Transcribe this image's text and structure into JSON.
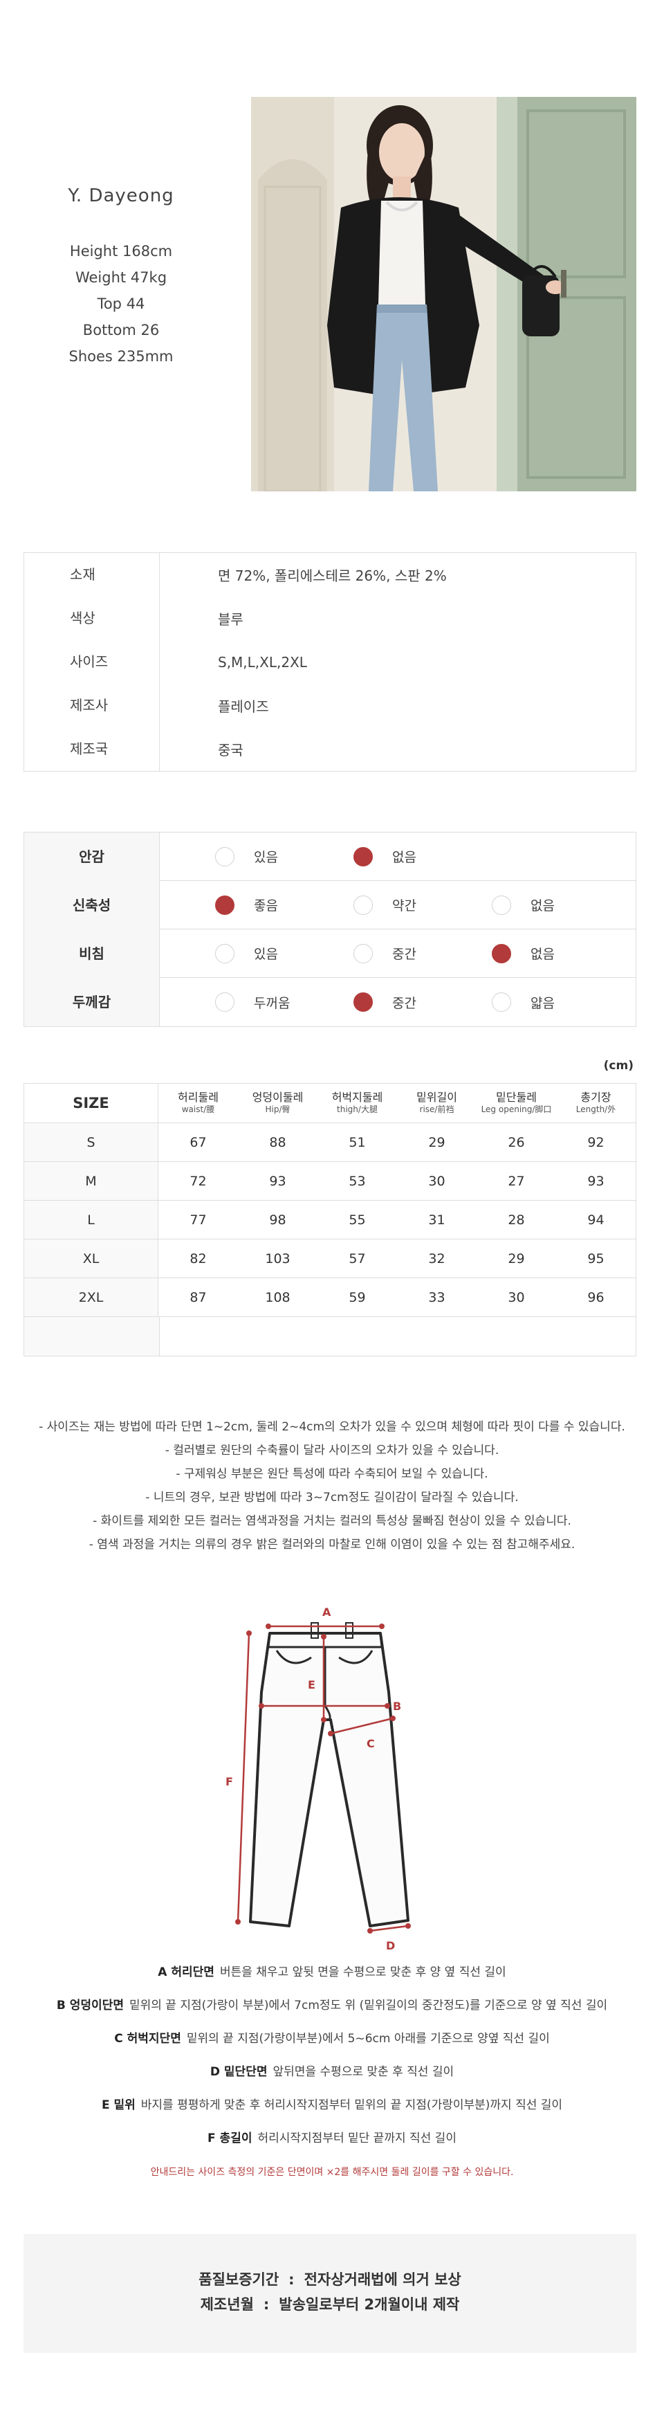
{
  "model": {
    "name": "Y. Dayeong",
    "stats": [
      "Height 168cm",
      "Weight 47kg",
      "Top 44",
      "Bottom 26",
      "Shoes 235mm"
    ]
  },
  "spec": [
    {
      "label": "소재",
      "value": "면 72%, 폴리에스테르 26%, 스판 2%"
    },
    {
      "label": "색상",
      "value": "블루"
    },
    {
      "label": "사이즈",
      "value": "S,M,L,XL,2XL"
    },
    {
      "label": "제조사",
      "value": "플레이즈"
    },
    {
      "label": "제조국",
      "value": "중국"
    }
  ],
  "attributes": [
    {
      "label": "안감",
      "options": [
        {
          "text": "있음",
          "on": false
        },
        {
          "text": "없음",
          "on": true
        }
      ]
    },
    {
      "label": "신축성",
      "options": [
        {
          "text": "좋음",
          "on": true
        },
        {
          "text": "약간",
          "on": false
        },
        {
          "text": "없음",
          "on": false
        }
      ]
    },
    {
      "label": "비침",
      "options": [
        {
          "text": "있음",
          "on": false
        },
        {
          "text": "중간",
          "on": false
        },
        {
          "text": "없음",
          "on": true
        }
      ]
    },
    {
      "label": "두께감",
      "options": [
        {
          "text": "두꺼움",
          "on": false
        },
        {
          "text": "중간",
          "on": true
        },
        {
          "text": "얇음",
          "on": false
        }
      ]
    }
  ],
  "size_table": {
    "unit": "(cm)",
    "header_label": "SIZE",
    "columns": [
      {
        "ko": "허리둘레",
        "en": "waist/腰"
      },
      {
        "ko": "엉덩이둘레",
        "en": "Hip/臀"
      },
      {
        "ko": "허벅지둘레",
        "en": "thigh/大腿"
      },
      {
        "ko": "밑위길이",
        "en": "rise/前裆"
      },
      {
        "ko": "밑단둘레",
        "en": "Leg opening/脚口"
      },
      {
        "ko": "총기장",
        "en": "Length/外"
      }
    ],
    "rows": [
      {
        "size": "S",
        "values": [
          "67",
          "88",
          "51",
          "29",
          "26",
          "92"
        ]
      },
      {
        "size": "M",
        "values": [
          "72",
          "93",
          "53",
          "30",
          "27",
          "93"
        ]
      },
      {
        "size": "L",
        "values": [
          "77",
          "98",
          "55",
          "31",
          "28",
          "94"
        ]
      },
      {
        "size": "XL",
        "values": [
          "82",
          "103",
          "57",
          "32",
          "29",
          "95"
        ]
      },
      {
        "size": "2XL",
        "values": [
          "87",
          "108",
          "59",
          "33",
          "30",
          "96"
        ]
      },
      {
        "size": "",
        "values": [
          "",
          "",
          "",
          "",
          "",
          ""
        ]
      }
    ]
  },
  "notes": [
    "- 사이즈는 재는 방법에 따라 단면 1~2cm, 둘레 2~4cm의 오차가 있을 수 있으며 체형에 따라 핏이 다를 수 있습니다.",
    "- 컬러별로 원단의 수축률이 달라 사이즈의 오차가 있을 수 있습니다.",
    "- 구제워싱 부분은 원단 특성에 따라 수축되어 보일 수 있습니다.",
    "- 니트의 경우, 보관 방법에 따라 3~7cm정도 길이감이 달라질 수 있습니다.",
    "- 화이트를 제외한 모든 컬러는 염색과정을 거치는 컬러의 특성상 물빠짐 현상이 있을 수 있습니다.",
    "- 염색 과정을 거치는 의류의 경우 밝은 컬러와의 마찰로 인해 이염이 있을 수 있는 점 참고해주세요."
  ],
  "diagram": {
    "labels": [
      "A",
      "B",
      "C",
      "D",
      "E",
      "F"
    ],
    "accent": "#b33a3a"
  },
  "measure": [
    {
      "key": "A 허리단면",
      "desc": "버튼을 채우고 앞뒷 면을 수평으로 맞춘 후 양 옆 직선 길이"
    },
    {
      "key": "B 엉덩이단면",
      "desc": "밑위의 끝 지점(가랑이 부분)에서 7cm정도 위 (밑위길이의 중간정도)를 기준으로 양 옆 직선 길이"
    },
    {
      "key": "C 허벅지단면",
      "desc": "밑위의 끝 지점(가랑이부분)에서 5~6cm 아래를 기준으로 양옆 직선 길이"
    },
    {
      "key": "D 밑단단면",
      "desc": "앞뒤면을 수평으로 맞춘 후 직선 길이"
    },
    {
      "key": "E 밑위",
      "desc": "바지를 평평하게 맞춘 후 허리시작지점부터 밑위의 끝 지점(가랑이부분)까지 직선 길이"
    },
    {
      "key": "F 총길이",
      "desc": "허리시작지점부터 밑단 끝까지 직선 길이"
    }
  ],
  "measure_note": "안내드리는 사이즈 측정의 기준은 단면이며 ×2를 해주시면 둘레 길이를 구할 수 있습니다.",
  "warranty": [
    {
      "label": "품질보증기간",
      "sep": ":",
      "value": "전자상거래법에 의거 보상"
    },
    {
      "label": "제조년월",
      "sep": ":",
      "value": "발송일로부터 2개월이내 제작"
    }
  ]
}
